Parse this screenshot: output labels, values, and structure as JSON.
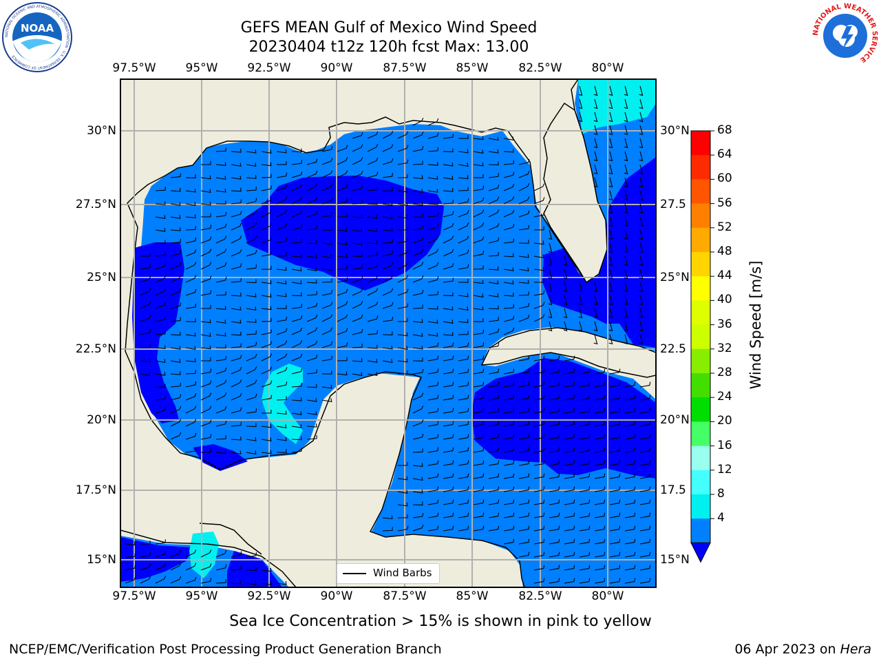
{
  "header": {
    "title_line1": "GEFS MEAN Gulf of Mexico Wind Speed",
    "title_line2": "20230404 t12z 120h fcst   Max: 13.00"
  },
  "logos": {
    "noaa_text": "NOAA",
    "noaa_ring": "NATIONAL OCEANIC AND ATMOSPHERIC ADMINISTRATION · U.S. DEPARTMENT OF COMMERCE",
    "nws_ring": "NATIONAL WEATHER SERVICE"
  },
  "map": {
    "lon_labels": [
      "97.5°W",
      "95°W",
      "92.5°W",
      "90°W",
      "87.5°W",
      "85°W",
      "82.5°W",
      "80°W"
    ],
    "lat_labels_left": [
      "30°N",
      "27.5°N",
      "25°N",
      "22.5°N",
      "20°N",
      "17.5°N",
      "15°N"
    ],
    "lat_labels_right": [
      "30°N",
      "27.5",
      "25°N",
      "22.5",
      "20°N",
      "17.5",
      "15°N"
    ],
    "land_color": "#eeeddd",
    "grid_color": "#b0b0b0",
    "legend_label": "Wind Barbs"
  },
  "colorbar": {
    "title": "Wind Speed [m/s]",
    "ticks": [
      "68",
      "64",
      "60",
      "56",
      "52",
      "48",
      "44",
      "40",
      "36",
      "32",
      "28",
      "24",
      "20",
      "16",
      "12",
      "8",
      "4"
    ],
    "colors": [
      "#ff0000",
      "#ff2a00",
      "#ff5500",
      "#ff8000",
      "#ffaa00",
      "#ffd400",
      "#ffff00",
      "#ddff00",
      "#ccff00",
      "#88ee00",
      "#44dd00",
      "#00dd00",
      "#44ff66",
      "#99ffee",
      "#44ffff",
      "#00f0f0",
      "#0080ff"
    ],
    "extend_color": "#0000ff"
  },
  "caption": "Sea Ice Concentration > 15% is shown in pink to yellow",
  "footer": {
    "left": "NCEP/EMC/Verification Post Processing Product Generation Branch",
    "date": "06 Apr 2023 on ",
    "machine": "Hera"
  }
}
